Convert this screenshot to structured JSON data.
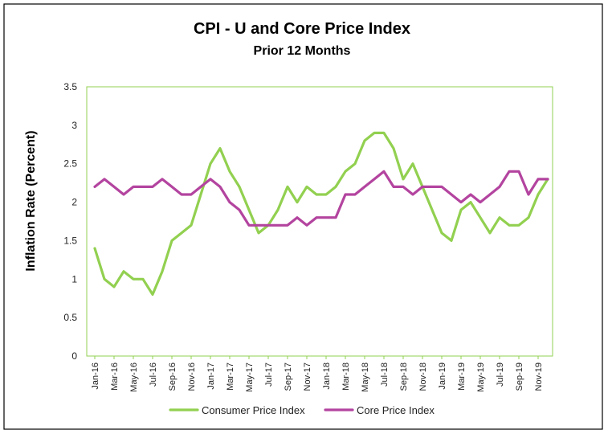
{
  "chart_data": {
    "type": "line",
    "title": "CPI - U and Core Price Index",
    "subtitle": "Prior 12 Months",
    "ylabel": "Inflation Rate (Percent)",
    "xlabel": "",
    "ylim": [
      0,
      3.5
    ],
    "yticks": [
      "0",
      "0.5",
      "1",
      "1.5",
      "2",
      "2.5",
      "3",
      "3.5"
    ],
    "legend_position": "bottom",
    "grid": false,
    "x": [
      "Jan-16",
      "Feb-16",
      "Mar-16",
      "Apr-16",
      "May-16",
      "Jun-16",
      "Jul-16",
      "Aug-16",
      "Sep-16",
      "Oct-16",
      "Nov-16",
      "Dec-16",
      "Jan-17",
      "Feb-17",
      "Mar-17",
      "Apr-17",
      "May-17",
      "Jun-17",
      "Jul-17",
      "Aug-17",
      "Sep-17",
      "Oct-17",
      "Nov-17",
      "Dec-17",
      "Jan-18",
      "Feb-18",
      "Mar-18",
      "Apr-18",
      "May-18",
      "Jun-18",
      "Jul-18",
      "Aug-18",
      "Sep-18",
      "Oct-18",
      "Nov-18",
      "Dec-18",
      "Jan-19",
      "Feb-19",
      "Mar-19",
      "Apr-19",
      "May-19",
      "Jun-19",
      "Jul-19",
      "Aug-19",
      "Sep-19",
      "Oct-19",
      "Nov-19",
      "Dec-19"
    ],
    "xtick_labels": [
      "Jan-16",
      "Mar-16",
      "May-16",
      "Jul-16",
      "Sep-16",
      "Nov-16",
      "Jan-17",
      "Mar-17",
      "May-17",
      "Jul-17",
      "Sep-17",
      "Nov-17",
      "Jan-18",
      "Mar-18",
      "May-18",
      "Jul-18",
      "Sep-18",
      "Nov-18",
      "Jan-19",
      "Mar-19",
      "May-19",
      "Jul-19",
      "Sep-19",
      "Nov-19"
    ],
    "series": [
      {
        "name": "Consumer Price Index",
        "color": "#92D050",
        "values": [
          1.4,
          1.0,
          0.9,
          1.1,
          1.0,
          1.0,
          0.8,
          1.1,
          1.5,
          1.6,
          1.7,
          2.1,
          2.5,
          2.7,
          2.4,
          2.2,
          1.9,
          1.6,
          1.7,
          1.9,
          2.2,
          2.0,
          2.2,
          2.1,
          2.1,
          2.2,
          2.4,
          2.5,
          2.8,
          2.9,
          2.9,
          2.7,
          2.3,
          2.5,
          2.2,
          1.9,
          1.6,
          1.5,
          1.9,
          2.0,
          1.8,
          1.6,
          1.8,
          1.7,
          1.7,
          1.8,
          2.1,
          2.3
        ]
      },
      {
        "name": "Core Price Index",
        "color": "#B3449F",
        "values": [
          2.2,
          2.3,
          2.2,
          2.1,
          2.2,
          2.2,
          2.2,
          2.3,
          2.2,
          2.1,
          2.1,
          2.2,
          2.3,
          2.2,
          2.0,
          1.9,
          1.7,
          1.7,
          1.7,
          1.7,
          1.7,
          1.8,
          1.7,
          1.8,
          1.8,
          1.8,
          2.1,
          2.1,
          2.2,
          2.3,
          2.4,
          2.2,
          2.2,
          2.1,
          2.2,
          2.2,
          2.2,
          2.1,
          2.0,
          2.1,
          2.0,
          2.1,
          2.2,
          2.4,
          2.4,
          2.1,
          2.3,
          2.3
        ]
      }
    ],
    "plot_border_color": "#92D050"
  }
}
